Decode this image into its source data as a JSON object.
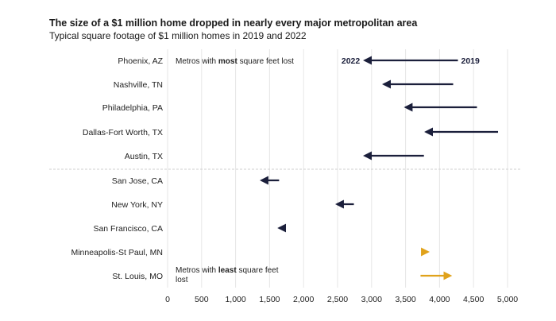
{
  "chart_data": {
    "type": "dumbbell",
    "title": "The size of a $1 million home dropped in nearly every major metropolitan area",
    "subtitle": "Typical square footage of $1 million homes in 2019 and 2022",
    "xlim": [
      0,
      5000
    ],
    "x_ticks": [
      0,
      500,
      1000,
      1500,
      2000,
      2500,
      3000,
      3500,
      4000,
      4500,
      5000
    ],
    "x_tick_labels": [
      "0",
      "500",
      "1,000",
      "1,500",
      "2,000",
      "2,500",
      "3,000",
      "3,500",
      "4,000",
      "4,500",
      "5,000"
    ],
    "grid": true,
    "series": [
      {
        "name": "2019",
        "key": "start"
      },
      {
        "name": "2022",
        "key": "end"
      }
    ],
    "colors": {
      "decrease": "#1b1f3b",
      "increase": "#e0a21b",
      "grid": "#e6e6e6",
      "divider": "#cfcfcf"
    },
    "groups": [
      {
        "annotation_prefix": "Metros with ",
        "annotation_bold": "most",
        "annotation_suffix": " square feet lost",
        "rows": [
          {
            "label": "Phoenix, AZ",
            "start": 4270,
            "end": 2900
          },
          {
            "label": "Nashville, TN",
            "start": 4200,
            "end": 3180
          },
          {
            "label": "Philadelphia, PA",
            "start": 4550,
            "end": 3500
          },
          {
            "label": "Dallas-Fort Worth, TX",
            "start": 4860,
            "end": 3800
          },
          {
            "label": "Austin, TX",
            "start": 3770,
            "end": 2900
          }
        ]
      },
      {
        "annotation_prefix": "Metros with ",
        "annotation_bold": "least",
        "annotation_suffix": " square feet",
        "annotation_line2": "lost",
        "rows": [
          {
            "label": "San Jose, CA",
            "start": 1640,
            "end": 1380
          },
          {
            "label": "New York, NY",
            "start": 2740,
            "end": 2490
          },
          {
            "label": "San Francisco, CA",
            "start": 1730,
            "end": 1640
          },
          {
            "label": "Minneapolis-St Paul, MN",
            "start": 3770,
            "end": 3830
          },
          {
            "label": "St. Louis, MO",
            "start": 3720,
            "end": 4160
          }
        ]
      }
    ],
    "legend_labels": {
      "end_year": "2022",
      "start_year": "2019"
    }
  }
}
